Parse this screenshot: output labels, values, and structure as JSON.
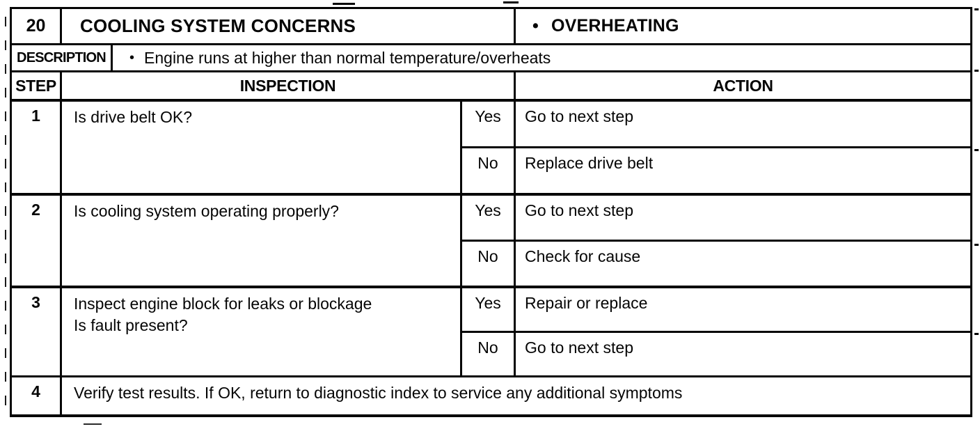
{
  "header": {
    "code": "20",
    "title": "COOLING SYSTEM CONCERNS",
    "bullet": "•",
    "symptom": "OVERHEATING"
  },
  "description": {
    "label": "DESCRIPTION",
    "bullet": "•",
    "text": "Engine runs at higher than normal temperature/overheats"
  },
  "table": {
    "columns": {
      "step": "STEP",
      "inspection": "INSPECTION",
      "action": "ACTION"
    },
    "steps": [
      {
        "number": "1",
        "inspection": "Is drive belt OK?",
        "branches": [
          {
            "answer": "Yes",
            "action": "Go to next step"
          },
          {
            "answer": "No",
            "action": "Replace drive belt"
          }
        ]
      },
      {
        "number": "2",
        "inspection": "Is cooling system operating properly?",
        "branches": [
          {
            "answer": "Yes",
            "action": "Go to next step"
          },
          {
            "answer": "No",
            "action": "Check for cause"
          }
        ]
      },
      {
        "number": "3",
        "inspection": "Inspect engine block for leaks or blockage\nIs fault present?",
        "branches": [
          {
            "answer": "Yes",
            "action": "Repair or replace"
          },
          {
            "answer": "No",
            "action": "Go to next step"
          }
        ]
      },
      {
        "number": "4",
        "inspection": "Verify test results. If OK, return to diagnostic index to service any additional symptoms",
        "branches": []
      }
    ]
  }
}
